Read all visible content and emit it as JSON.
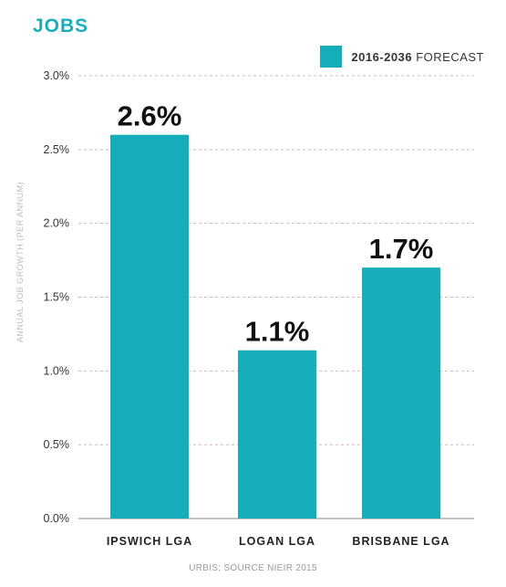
{
  "chart_data": {
    "type": "bar",
    "title": "JOBS",
    "ylabel": "ANNUAL JOB GROWTH (PER ANNUM)",
    "xlabel": "",
    "categories": [
      "IPSWICH LGA",
      "LOGAN LGA",
      "BRISBANE LGA"
    ],
    "series": [
      {
        "name": "2016-2036 FORECAST",
        "values": [
          2.6,
          1.14,
          1.7
        ],
        "data_labels": [
          "2.6%",
          "1.1%",
          "1.7%"
        ]
      }
    ],
    "ylim": [
      0,
      3.0
    ],
    "yticks": [
      0.0,
      0.5,
      1.0,
      1.5,
      2.0,
      2.5,
      3.0
    ],
    "ytick_labels": [
      "0.0%",
      "0.5%",
      "1.0%",
      "1.5%",
      "2.0%",
      "2.5%",
      "3.0%"
    ],
    "grid": true,
    "legend_position": "top-right",
    "source": "URBIS; SOURCE NIEIR 2015",
    "colors": {
      "bar": "#15adba",
      "title": "#19aebc",
      "grid": "#c9b9bd"
    }
  }
}
